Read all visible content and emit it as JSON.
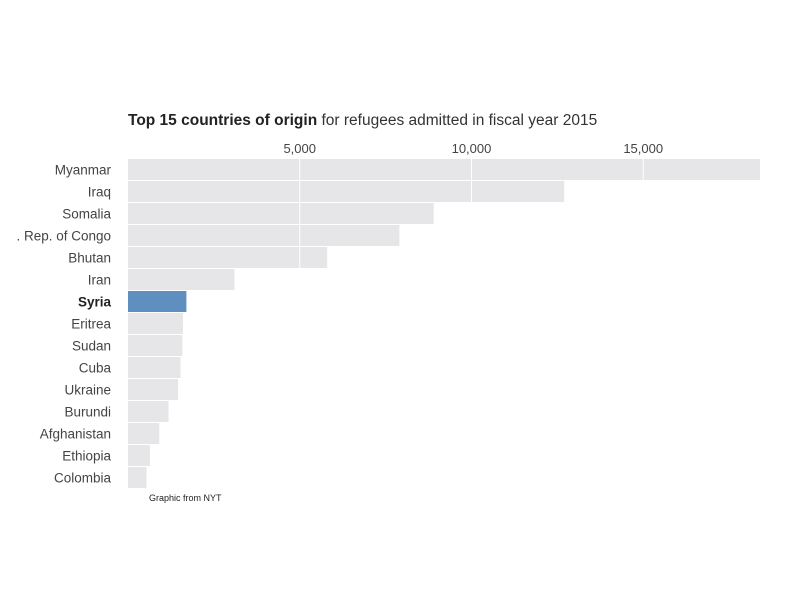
{
  "chart_data": {
    "type": "bar",
    "orientation": "horizontal",
    "title_bold": "Top 15 countries of origin",
    "title_rest": " for refugees admitted in fiscal year 2015",
    "categories": [
      "Myanmar",
      "Iraq",
      "Somalia",
      ". Rep. of Congo",
      "Bhutan",
      "Iran",
      "Syria",
      "Eritrea",
      "Sudan",
      "Cuba",
      "Ukraine",
      "Burundi",
      "Afghanistan",
      "Ethiopia",
      "Colombia"
    ],
    "values": [
      18400,
      12700,
      8900,
      7900,
      5800,
      3100,
      1700,
      1600,
      1580,
      1530,
      1460,
      1180,
      910,
      640,
      540
    ],
    "highlight": "Syria",
    "xticks": [
      5000,
      10000,
      15000
    ],
    "xtick_labels": [
      "5,000",
      "10,000",
      "15,000"
    ],
    "xlim": [
      0,
      18400
    ],
    "colors": {
      "bar": "#e6e6e8",
      "highlight": "#5f8fbf",
      "gridline": "#ffffff",
      "label": "#444444"
    }
  },
  "source_note": "Graphic from NYT"
}
